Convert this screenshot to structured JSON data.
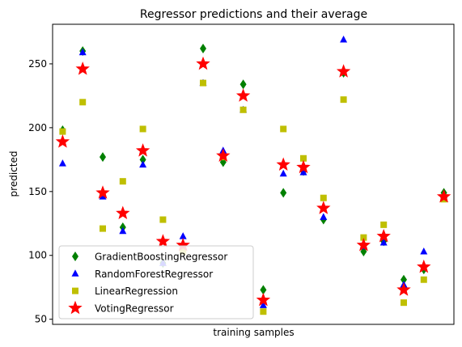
{
  "chart_data": {
    "type": "scatter",
    "title": "Regressor predictions and their average",
    "xlabel": "training samples",
    "ylabel": "predicted",
    "ylim": [
      46,
      281
    ],
    "x": [
      0,
      1,
      2,
      3,
      4,
      5,
      6,
      7,
      8,
      9,
      10,
      11,
      12,
      13,
      14,
      15,
      16,
      17,
      18,
      19
    ],
    "y_ticks": [
      50,
      100,
      150,
      200,
      250
    ],
    "grid": false,
    "legend_position": "lower-left",
    "series": [
      {
        "name": "GradientBoostingRegressor",
        "marker": "diamond",
        "color": "#008000",
        "values": [
          198,
          260,
          177,
          122,
          175,
          94,
          108,
          262,
          173,
          234,
          73,
          149,
          166,
          128,
          243,
          103,
          111,
          81,
          89,
          149
        ]
      },
      {
        "name": "RandomForestRegressor",
        "marker": "triangle",
        "color": "#0000ff",
        "values": [
          172,
          259,
          146,
          119,
          171,
          94,
          115,
          235,
          182,
          214,
          61,
          164,
          165,
          130,
          269,
          107,
          110,
          77,
          103,
          147
        ]
      },
      {
        "name": "LinearRegression",
        "marker": "square",
        "color": "#bfbf00",
        "values": [
          197,
          220,
          121,
          158,
          199,
          128,
          103,
          235,
          177,
          214,
          56,
          199,
          176,
          145,
          222,
          114,
          124,
          63,
          81,
          144
        ]
      },
      {
        "name": "VotingRegressor",
        "marker": "star",
        "color": "#ff0000",
        "values": [
          189,
          246,
          149,
          133,
          182,
          111,
          108,
          250,
          178,
          225,
          65,
          171,
          169,
          137,
          244,
          108,
          115,
          73,
          91,
          146
        ]
      }
    ]
  }
}
